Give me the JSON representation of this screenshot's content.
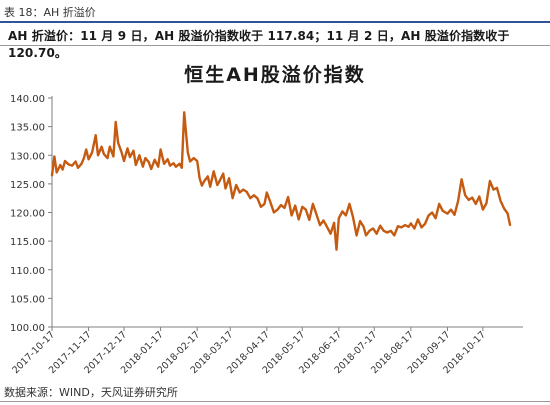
{
  "header": {
    "figure_label": "表 18：AH 折溢价",
    "summary": "AH 折溢价：11 月 9 日，AH 股溢价指数收于 117.84；11 月 2 日，AH 股溢价指数收于 120.70。"
  },
  "footer": {
    "source": "数据来源：WIND，天风证券研究所"
  },
  "colors": {
    "line": "#c55a11",
    "header_rule": "#2f5597",
    "axis": "#7f7f7f"
  },
  "chart_data": {
    "type": "line",
    "title": "恒生AH股溢价指数",
    "xlabel": "",
    "ylabel": "",
    "ylim": [
      100,
      140
    ],
    "grid": false,
    "yticks": [
      "100.00",
      "105.00",
      "110.00",
      "115.00",
      "120.00",
      "125.00",
      "130.00",
      "135.00",
      "140.00"
    ],
    "xticks": [
      "2017-10-17",
      "2017-11-17",
      "2017-12-17",
      "2018-01-17",
      "2018-02-17",
      "2018-03-17",
      "2018-04-17",
      "2018-05-17",
      "2018-06-17",
      "2018-07-17",
      "2018-08-17",
      "2018-09-17",
      "2018-10-17"
    ],
    "series": [
      {
        "x": [
          "2017-10-17",
          "2017-10-19",
          "2017-10-21",
          "2017-10-24",
          "2017-10-26",
          "2017-10-28",
          "2017-10-31",
          "2017-11-03",
          "2017-11-06",
          "2017-11-08",
          "2017-11-11",
          "2017-11-13",
          "2017-11-15",
          "2017-11-17",
          "2017-11-20",
          "2017-11-23",
          "2017-11-25",
          "2017-11-28",
          "2017-11-30",
          "2017-12-03",
          "2017-12-05",
          "2017-12-08",
          "2017-12-10",
          "2017-12-12",
          "2017-12-15",
          "2017-12-17",
          "2017-12-20",
          "2017-12-22",
          "2017-12-25",
          "2017-12-27",
          "2017-12-30",
          "2018-01-02",
          "2018-01-04",
          "2018-01-07",
          "2018-01-09",
          "2018-01-12",
          "2018-01-15",
          "2018-01-17",
          "2018-01-20",
          "2018-01-23",
          "2018-01-25",
          "2018-01-28",
          "2018-01-30",
          "2018-02-02",
          "2018-02-04",
          "2018-02-06",
          "2018-02-09",
          "2018-02-11",
          "2018-02-14",
          "2018-02-17",
          "2018-02-19",
          "2018-02-21",
          "2018-02-23",
          "2018-02-26",
          "2018-02-28",
          "2018-03-03",
          "2018-03-06",
          "2018-03-08",
          "2018-03-11",
          "2018-03-13",
          "2018-03-16",
          "2018-03-19",
          "2018-03-22",
          "2018-03-25",
          "2018-03-28",
          "2018-03-31",
          "2018-04-03",
          "2018-04-06",
          "2018-04-09",
          "2018-04-12",
          "2018-04-15",
          "2018-04-17",
          "2018-04-20",
          "2018-04-23",
          "2018-04-26",
          "2018-04-29",
          "2018-05-02",
          "2018-05-05",
          "2018-05-08",
          "2018-05-11",
          "2018-05-14",
          "2018-05-17",
          "2018-05-20",
          "2018-05-23",
          "2018-05-26",
          "2018-05-29",
          "2018-06-01",
          "2018-06-04",
          "2018-06-07",
          "2018-06-10",
          "2018-06-13",
          "2018-06-15",
          "2018-06-17",
          "2018-06-20",
          "2018-06-23",
          "2018-06-26",
          "2018-06-29",
          "2018-07-02",
          "2018-07-05",
          "2018-07-08",
          "2018-07-10",
          "2018-07-13",
          "2018-07-16",
          "2018-07-19",
          "2018-07-22",
          "2018-07-25",
          "2018-07-28",
          "2018-07-31",
          "2018-08-03",
          "2018-08-06",
          "2018-08-09",
          "2018-08-12",
          "2018-08-15",
          "2018-08-17",
          "2018-08-20",
          "2018-08-23",
          "2018-08-26",
          "2018-08-29",
          "2018-09-01",
          "2018-09-04",
          "2018-09-07",
          "2018-09-10",
          "2018-09-13",
          "2018-09-17",
          "2018-09-20",
          "2018-09-23",
          "2018-09-26",
          "2018-09-29",
          "2018-10-02",
          "2018-10-05",
          "2018-10-08",
          "2018-10-11",
          "2018-10-14",
          "2018-10-17",
          "2018-10-20",
          "2018-10-23",
          "2018-10-26",
          "2018-10-29",
          "2018-11-01",
          "2018-11-04",
          "2018-11-07",
          "2018-11-09"
        ],
        "values": [
          126.5,
          129.8,
          127.0,
          128.3,
          127.5,
          129.0,
          128.4,
          128.2,
          128.9,
          127.8,
          128.5,
          129.5,
          131.0,
          129.3,
          130.5,
          133.5,
          130.0,
          131.5,
          130.2,
          129.5,
          131.5,
          129.8,
          135.8,
          132.2,
          130.5,
          129.0,
          131.2,
          129.7,
          130.8,
          128.3,
          130.0,
          128.0,
          129.5,
          128.8,
          127.6,
          129.2,
          128.0,
          131.0,
          128.5,
          129.3,
          128.2,
          128.6,
          128.0,
          128.5,
          127.8,
          137.5,
          130.5,
          128.9,
          129.5,
          129.0,
          126.0,
          124.7,
          125.5,
          126.3,
          124.5,
          127.2,
          124.8,
          125.5,
          126.8,
          124.2,
          126.0,
          122.5,
          124.8,
          123.5,
          124.0,
          123.6,
          122.5,
          123.0,
          122.5,
          121.0,
          121.5,
          123.5,
          121.8,
          120.0,
          120.5,
          121.3,
          120.8,
          122.7,
          119.5,
          121.2,
          118.8,
          121.0,
          120.5,
          118.7,
          121.5,
          119.7,
          117.8,
          118.6,
          117.5,
          116.3,
          118.2,
          113.5,
          119.0,
          120.2,
          119.5,
          121.5,
          119.2,
          116.0,
          118.5,
          117.5,
          116.0,
          116.8,
          117.2,
          116.3,
          117.7,
          116.8,
          116.5,
          116.8,
          116.0,
          117.6,
          117.4,
          117.8,
          117.5,
          118.1,
          117.2,
          118.8,
          117.4,
          118.0,
          119.5,
          120.0,
          119.0,
          121.5,
          120.3,
          119.8,
          120.5,
          119.6,
          122.0,
          125.8,
          123.0,
          122.2,
          122.6,
          121.5,
          122.8,
          120.5,
          121.6,
          125.5,
          124.0,
          124.3,
          122.0,
          120.7,
          119.8,
          117.84
        ]
      }
    ]
  }
}
